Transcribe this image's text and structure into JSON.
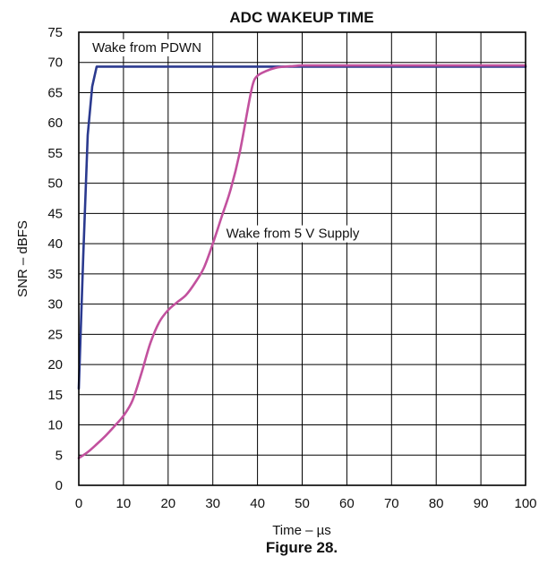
{
  "chart_data": {
    "type": "line",
    "title": "ADC WAKEUP TIME",
    "xlabel": "Time – µs",
    "ylabel": "SNR – dBFS",
    "xlim": [
      0,
      100
    ],
    "ylim": [
      0,
      75
    ],
    "xticks": [
      0,
      10,
      20,
      30,
      40,
      50,
      60,
      70,
      80,
      90,
      100
    ],
    "yticks": [
      0,
      5,
      10,
      15,
      20,
      25,
      30,
      35,
      40,
      45,
      50,
      55,
      60,
      65,
      70,
      75
    ],
    "grid": true,
    "series": [
      {
        "name": "Wake from PDWN",
        "color": "#2b3a8f",
        "x": [
          0,
          1,
          2,
          3,
          4,
          100
        ],
        "y": [
          16,
          38,
          58,
          66,
          69.3,
          69.3
        ]
      },
      {
        "name": "Wake from 5 V Supply",
        "color": "#c2519e",
        "x": [
          0,
          2,
          4,
          6,
          8,
          10,
          12,
          14,
          16,
          18,
          20,
          22,
          24,
          26,
          28,
          30,
          32,
          34,
          36,
          38,
          39,
          40,
          42,
          44,
          46,
          48,
          50,
          55,
          60,
          70,
          80,
          90,
          100
        ],
        "y": [
          4.5,
          5.5,
          6.8,
          8.2,
          9.8,
          11.5,
          14,
          18.5,
          23.5,
          27,
          29,
          30.3,
          31.5,
          33.5,
          36,
          40,
          44.5,
          49,
          55,
          63,
          66.5,
          67.8,
          68.6,
          69.1,
          69.3,
          69.4,
          69.5,
          69.5,
          69.5,
          69.5,
          69.5,
          69.5,
          69.5
        ]
      }
    ],
    "annotations": [
      {
        "text": "Wake from PDWN",
        "x": 3,
        "y": 72.5
      },
      {
        "text": "Wake from 5 V Supply",
        "x": 33,
        "y": 41.7
      }
    ]
  },
  "caption": "Figure 28."
}
